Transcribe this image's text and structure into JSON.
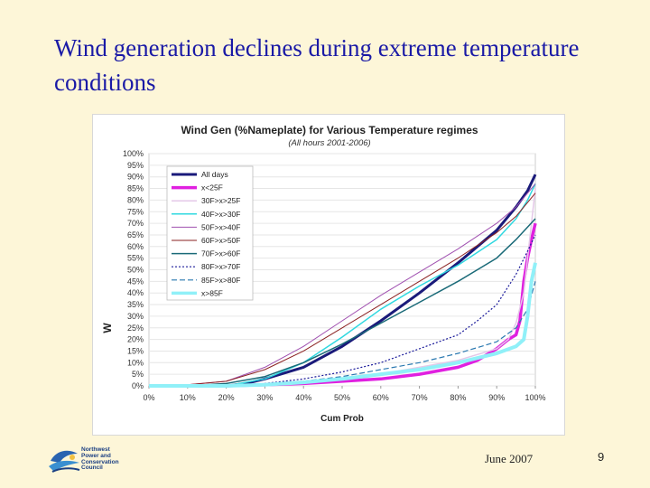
{
  "slide": {
    "title": "Wind generation declines during extreme temperature conditions",
    "footer_date": "June 2007",
    "page_number": "9",
    "logo_text": [
      "Northwest",
      "Power and",
      "Conservation",
      "Council"
    ]
  },
  "chart_data": {
    "type": "line",
    "title": "Wind Gen (%Nameplate) for Various Temperature regimes",
    "subtitle": "(All hours 2001-2006)",
    "xlabel": "Cum Prob",
    "ylabel": "W",
    "xlim": [
      0,
      100
    ],
    "ylim": [
      0,
      100
    ],
    "x_ticks": [
      "0%",
      "10%",
      "20%",
      "30%",
      "40%",
      "50%",
      "60%",
      "70%",
      "80%",
      "90%",
      "100%"
    ],
    "y_ticks": [
      "0%",
      "5%",
      "10%",
      "15%",
      "20%",
      "25%",
      "30%",
      "35%",
      "40%",
      "45%",
      "50%",
      "55%",
      "60%",
      "65%",
      "70%",
      "75%",
      "80%",
      "85%",
      "90%",
      "95%",
      "100%"
    ],
    "legend_position": "top-left",
    "series": [
      {
        "name": "All days",
        "color": "#1a1a7a",
        "width": 3,
        "dash": "",
        "x": [
          0,
          10,
          20,
          25,
          30,
          40,
          50,
          60,
          70,
          80,
          90,
          95,
          98,
          100
        ],
        "y": [
          0,
          0,
          0,
          1,
          3,
          8,
          17,
          28,
          40,
          53,
          67,
          77,
          84,
          91
        ]
      },
      {
        "name": "x<25F",
        "color": "#e020e0",
        "width": 3.5,
        "dash": "",
        "x": [
          0,
          20,
          30,
          40,
          50,
          60,
          70,
          80,
          85,
          90,
          93,
          95,
          96,
          97,
          98,
          99,
          100
        ],
        "y": [
          0,
          0,
          0.5,
          1,
          2,
          3,
          5,
          8,
          11,
          16,
          20,
          22,
          28,
          45,
          55,
          63,
          70
        ]
      },
      {
        "name": "30F>x>25F",
        "color": "#e4c8e8",
        "width": 1.5,
        "dash": "",
        "x": [
          0,
          20,
          30,
          40,
          50,
          60,
          70,
          80,
          90,
          93,
          95,
          97,
          98,
          99,
          100
        ],
        "y": [
          0,
          0,
          1,
          2,
          3,
          5,
          8,
          11,
          16,
          20,
          27,
          40,
          55,
          70,
          85
        ]
      },
      {
        "name": "40F>x>30F",
        "color": "#30d8e0",
        "width": 1.5,
        "dash": "",
        "x": [
          0,
          20,
          30,
          40,
          50,
          60,
          70,
          80,
          90,
          95,
          98,
          100
        ],
        "y": [
          0,
          0,
          3,
          10,
          21,
          33,
          43,
          52,
          63,
          72,
          80,
          87
        ]
      },
      {
        "name": "50F>x>40F",
        "color": "#a050b0",
        "width": 1,
        "dash": "",
        "x": [
          0,
          10,
          20,
          30,
          40,
          50,
          60,
          70,
          80,
          90,
          95,
          100
        ],
        "y": [
          0,
          0.5,
          2,
          8,
          17,
          28,
          39,
          49,
          59,
          70,
          77,
          87
        ]
      },
      {
        "name": "60F>x>50F",
        "color": "#8a2020",
        "width": 1,
        "dash": "",
        "x": [
          0,
          10,
          20,
          30,
          40,
          50,
          60,
          70,
          80,
          90,
          95,
          100
        ],
        "y": [
          0,
          0.5,
          2,
          7,
          15,
          25,
          35,
          45,
          55,
          66,
          73,
          83
        ]
      },
      {
        "name": "70F>x>60F",
        "color": "#1a6a78",
        "width": 1.5,
        "dash": "",
        "x": [
          0,
          10,
          20,
          30,
          40,
          50,
          60,
          70,
          80,
          90,
          95,
          100
        ],
        "y": [
          0,
          0,
          1,
          4,
          10,
          18,
          27,
          36,
          45,
          55,
          63,
          72
        ]
      },
      {
        "name": "80F>x>70F",
        "color": "#1a1a9a",
        "width": 1.2,
        "dash": "2,2",
        "x": [
          0,
          20,
          30,
          40,
          50,
          60,
          70,
          80,
          85,
          90,
          95,
          98,
          100
        ],
        "y": [
          0,
          0,
          1,
          3,
          6,
          10,
          16,
          22,
          28,
          35,
          48,
          58,
          65
        ]
      },
      {
        "name": "85F>x>80F",
        "color": "#2a78b0",
        "width": 1.2,
        "dash": "6,3",
        "x": [
          0,
          20,
          30,
          40,
          50,
          60,
          70,
          80,
          90,
          95,
          98,
          100
        ],
        "y": [
          0,
          0,
          0.5,
          2,
          4,
          7,
          10,
          14,
          19,
          25,
          33,
          45
        ]
      },
      {
        "name": "x>85F",
        "color": "#90f0f8",
        "width": 4,
        "dash": "",
        "x": [
          0,
          20,
          30,
          40,
          50,
          60,
          70,
          80,
          90,
          95,
          97,
          98,
          99,
          100
        ],
        "y": [
          0,
          0,
          0.5,
          1.5,
          3,
          5,
          7,
          10,
          14,
          17,
          20,
          30,
          45,
          53
        ]
      }
    ]
  }
}
